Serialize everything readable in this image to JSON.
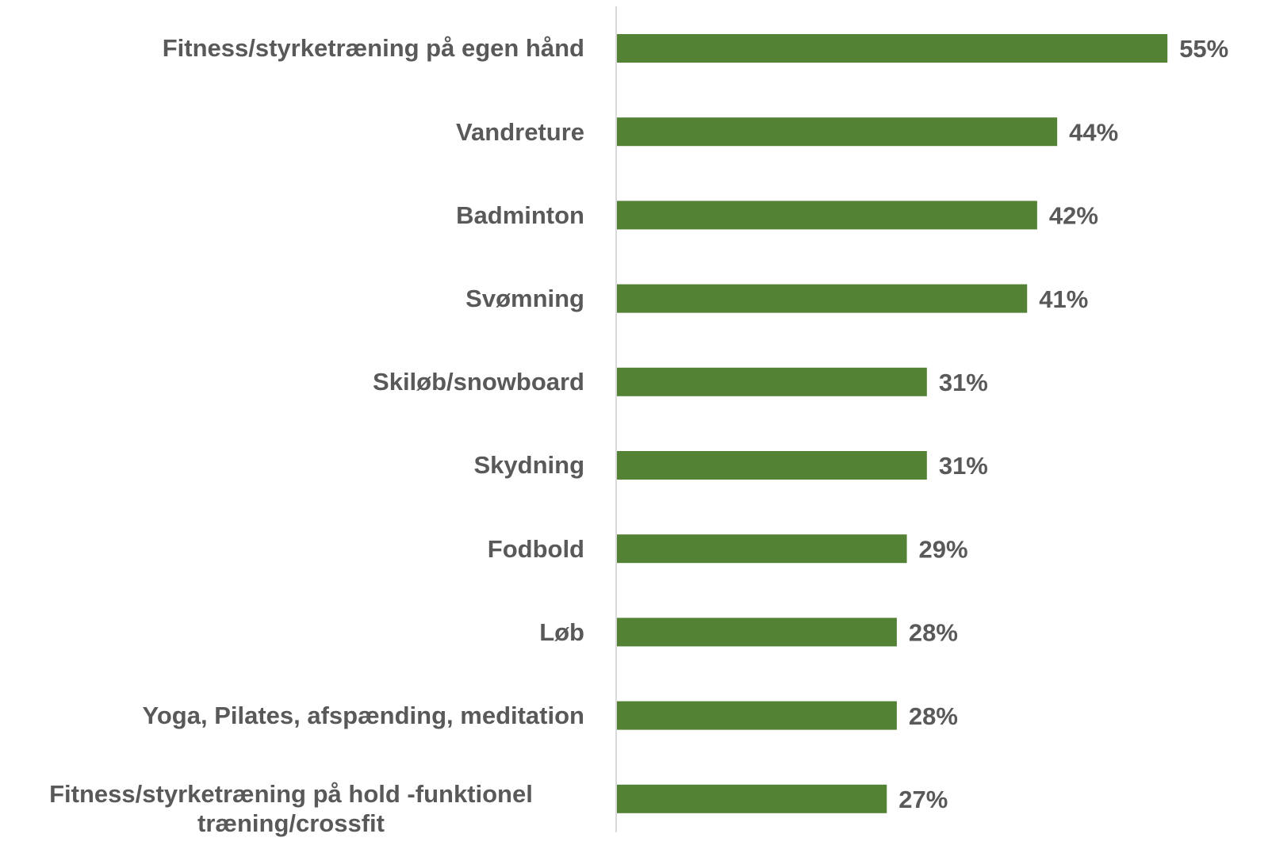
{
  "chart_data": {
    "type": "bar",
    "orientation": "horizontal",
    "categories": [
      "Fitness/styrketræning på egen hånd",
      "Vandreture",
      "Badminton",
      "Svømning",
      "Skiløb/snowboard",
      "Skydning",
      "Fodbold",
      "Løb",
      "Yoga, Pilates, afspænding, meditation",
      "Fitness/styrketræning på hold -funktionel træning/crossfit"
    ],
    "values": [
      55,
      44,
      42,
      41,
      31,
      31,
      29,
      28,
      28,
      27
    ],
    "value_labels": [
      "55%",
      "44%",
      "42%",
      "41%",
      "31%",
      "31%",
      "29%",
      "28%",
      "28%",
      "27%"
    ],
    "color": "#548235"
  }
}
